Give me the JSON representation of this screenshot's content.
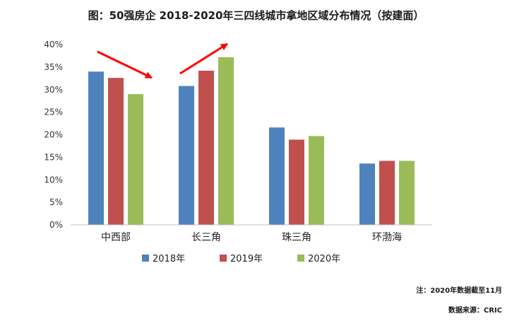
{
  "title": "图：50强房企 2018-2020年三四线城市拿地区域分布情况（按建面）",
  "note": "注：2020年数据截至11月",
  "source": "数据来源：CRIC",
  "chart_data": {
    "type": "bar",
    "categories": [
      "中西部",
      "长三角",
      "珠三角",
      "环渤海"
    ],
    "series": [
      {
        "name": "2018年",
        "values": [
          34.0,
          30.8,
          21.6,
          13.6
        ],
        "color": "#4f81bd"
      },
      {
        "name": "2019年",
        "values": [
          32.6,
          34.2,
          18.9,
          14.2
        ],
        "color": "#c0504d"
      },
      {
        "name": "2020年",
        "values": [
          29.0,
          37.2,
          19.7,
          14.2
        ],
        "color": "#9bbb59"
      }
    ],
    "yticks": [
      "0%",
      "5%",
      "10%",
      "15%",
      "20%",
      "25%",
      "30%",
      "35%",
      "40%"
    ],
    "ylim": [
      0,
      40
    ],
    "grid": false,
    "legend": "bottom",
    "arrow_color": "#ff0000"
  }
}
